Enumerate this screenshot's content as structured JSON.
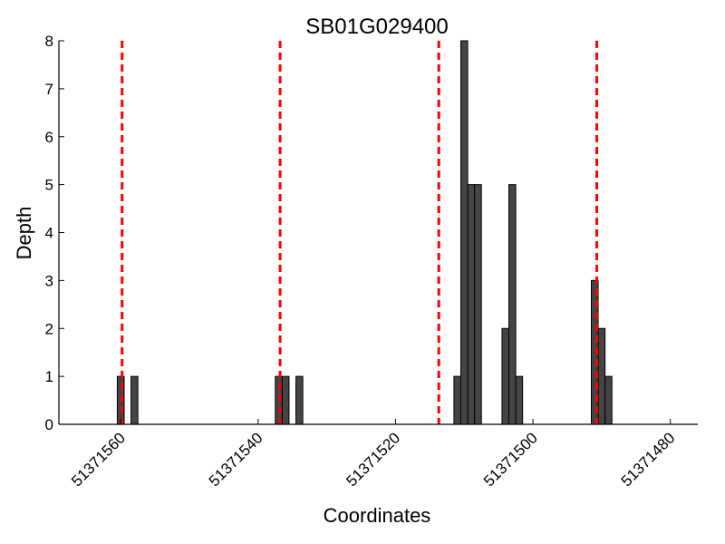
{
  "chart_data": {
    "type": "bar",
    "title": "SB01G029400",
    "xlabel": "Coordinates",
    "ylabel": "Depth",
    "xlim": [
      51371569,
      51371476
    ],
    "x_reversed": true,
    "ylim": [
      0,
      8
    ],
    "xticks": [
      51371560,
      51371540,
      51371520,
      51371500,
      51371480
    ],
    "xtick_labels": [
      "51371560",
      "51371540",
      "51371520",
      "51371500",
      "51371480"
    ],
    "yticks": [
      0,
      1,
      2,
      3,
      4,
      5,
      6,
      7,
      8
    ],
    "ytick_labels": [
      "0",
      "1",
      "2",
      "3",
      "4",
      "5",
      "6",
      "7",
      "8"
    ],
    "bar_width": 1,
    "bars": [
      {
        "x": 51371560,
        "value": 1
      },
      {
        "x": 51371558,
        "value": 1
      },
      {
        "x": 51371537,
        "value": 1
      },
      {
        "x": 51371536,
        "value": 1
      },
      {
        "x": 51371534,
        "value": 1
      },
      {
        "x": 51371511,
        "value": 1
      },
      {
        "x": 51371510,
        "value": 8
      },
      {
        "x": 51371509,
        "value": 5
      },
      {
        "x": 51371508,
        "value": 5
      },
      {
        "x": 51371504,
        "value": 2
      },
      {
        "x": 51371503,
        "value": 5
      },
      {
        "x": 51371502,
        "value": 1
      },
      {
        "x": 51371491,
        "value": 3
      },
      {
        "x": 51371490,
        "value": 2
      },
      {
        "x": 51371489,
        "value": 1
      }
    ],
    "vlines": [
      51371559.8,
      51371536.8,
      51371513.7,
      51371490.7
    ],
    "colors": {
      "bar_fill": "#444444",
      "bar_stroke": "#000000",
      "vline": "#ff0000"
    },
    "grid": false,
    "legend": "none"
  }
}
